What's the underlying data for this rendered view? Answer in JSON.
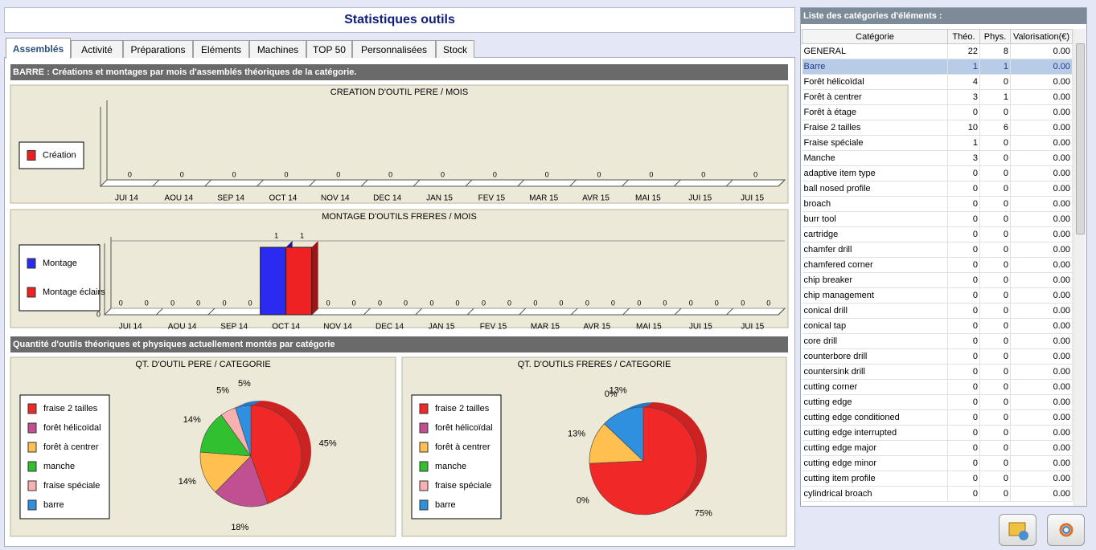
{
  "header": {
    "title": "Statistiques outils"
  },
  "tabs": [
    "Assemblés",
    "Activité",
    "Préparations",
    "Eléments",
    "Machines",
    "TOP 50",
    "Personnalisées",
    "Stock"
  ],
  "active_tab": 0,
  "sections": [
    "BARRE : Créations et montages par mois d'assemblés théoriques de la catégorie.",
    "Quantité d'outils théoriques et physiques actuellement montés par catégorie"
  ],
  "chart_data": [
    {
      "type": "bar",
      "title": "CREATION D'OUTIL PERE / MOIS",
      "categories": [
        "JUI 14",
        "AOU 14",
        "SEP 14",
        "OCT 14",
        "NOV 14",
        "DEC 14",
        "JAN 15",
        "FEV 15",
        "MAR 15",
        "AVR 15",
        "MAI 15",
        "JUI 15",
        "JUI 15"
      ],
      "series": [
        {
          "name": "Création",
          "color": "#e82020",
          "values": [
            0,
            0,
            0,
            0,
            0,
            0,
            0,
            0,
            0,
            0,
            0,
            0,
            0
          ]
        }
      ],
      "ylim": [
        0,
        1
      ]
    },
    {
      "type": "bar",
      "title": "MONTAGE D'OUTILS FRERES / MOIS",
      "categories": [
        "JUI 14",
        "AOU 14",
        "SEP 14",
        "OCT 14",
        "NOV 14",
        "DEC 14",
        "JAN 15",
        "FEV 15",
        "MAR 15",
        "AVR 15",
        "MAI 15",
        "JUI 15",
        "JUI 15"
      ],
      "series": [
        {
          "name": "Montage",
          "color": "#2a2af0",
          "values": [
            0,
            0,
            0,
            1,
            0,
            0,
            0,
            0,
            0,
            0,
            0,
            0,
            0
          ]
        },
        {
          "name": "Montage éclairs",
          "color": "#ee2222",
          "values": [
            0,
            0,
            0,
            1,
            0,
            0,
            0,
            0,
            0,
            0,
            0,
            0,
            0
          ]
        }
      ],
      "ylim": [
        0,
        1
      ],
      "yticks": [
        0,
        1
      ],
      "grid": true
    },
    {
      "type": "pie",
      "title": "QT. D'OUTIL PERE / CATEGORIE",
      "categories": [
        "fraise 2 tailles",
        "forêt hélicoïdal",
        "forêt à centrer",
        "manche",
        "fraise spéciale",
        "barre"
      ],
      "values": [
        45,
        18,
        14,
        14,
        5,
        5
      ],
      "value_labels": [
        "45%",
        "18%",
        "14%",
        "14%",
        "5%",
        "5%"
      ],
      "colors": [
        "#f02828",
        "#c05090",
        "#ffc050",
        "#30c030",
        "#f8b0b0",
        "#3090e0"
      ]
    },
    {
      "type": "pie",
      "title": "QT. D'OUTILS FRERES / CATEGORIE",
      "categories": [
        "fraise 2 tailles",
        "forêt hélicoïdal",
        "forêt à centrer",
        "manche",
        "fraise spéciale",
        "barre"
      ],
      "values": [
        75,
        0,
        13,
        0,
        0,
        13
      ],
      "value_labels": [
        "75%",
        "0%",
        "13%",
        null,
        "0%",
        "13%"
      ],
      "colors": [
        "#f02828",
        "#c05090",
        "#ffc050",
        "#30c030",
        "#f8b0b0",
        "#3090e0"
      ]
    }
  ],
  "table": {
    "title": "Liste des catégories d'éléments :",
    "columns": [
      "Catégorie",
      "Théo.",
      "Phys.",
      "Valorisation(€)"
    ],
    "selected_row": 1,
    "rows": [
      [
        "GENERAL",
        22,
        8,
        "0.00"
      ],
      [
        "Barre",
        1,
        1,
        "0.00"
      ],
      [
        "Forêt hélicoïdal",
        4,
        0,
        "0.00"
      ],
      [
        "Forêt à centrer",
        3,
        1,
        "0.00"
      ],
      [
        "Forêt à étage",
        0,
        0,
        "0.00"
      ],
      [
        "Fraise 2 tailles",
        10,
        6,
        "0.00"
      ],
      [
        "Fraise spéciale",
        1,
        0,
        "0.00"
      ],
      [
        "Manche",
        3,
        0,
        "0.00"
      ],
      [
        "adaptive item type",
        0,
        0,
        "0.00"
      ],
      [
        "ball nosed profile",
        0,
        0,
        "0.00"
      ],
      [
        "broach",
        0,
        0,
        "0.00"
      ],
      [
        "burr tool",
        0,
        0,
        "0.00"
      ],
      [
        "cartridge",
        0,
        0,
        "0.00"
      ],
      [
        "chamfer drill",
        0,
        0,
        "0.00"
      ],
      [
        "chamfered corner",
        0,
        0,
        "0.00"
      ],
      [
        "chip breaker",
        0,
        0,
        "0.00"
      ],
      [
        "chip management",
        0,
        0,
        "0.00"
      ],
      [
        "conical drill",
        0,
        0,
        "0.00"
      ],
      [
        "conical tap",
        0,
        0,
        "0.00"
      ],
      [
        "core drill",
        0,
        0,
        "0.00"
      ],
      [
        "counterbore drill",
        0,
        0,
        "0.00"
      ],
      [
        "countersink drill",
        0,
        0,
        "0.00"
      ],
      [
        "cutting corner",
        0,
        0,
        "0.00"
      ],
      [
        "cutting edge",
        0,
        0,
        "0.00"
      ],
      [
        "cutting edge conditioned",
        0,
        0,
        "0.00"
      ],
      [
        "cutting edge interrupted",
        0,
        0,
        "0.00"
      ],
      [
        "cutting edge major",
        0,
        0,
        "0.00"
      ],
      [
        "cutting edge minor",
        0,
        0,
        "0.00"
      ],
      [
        "cutting item profile",
        0,
        0,
        "0.00"
      ],
      [
        "cylindrical broach",
        0,
        0,
        "0.00"
      ]
    ]
  }
}
